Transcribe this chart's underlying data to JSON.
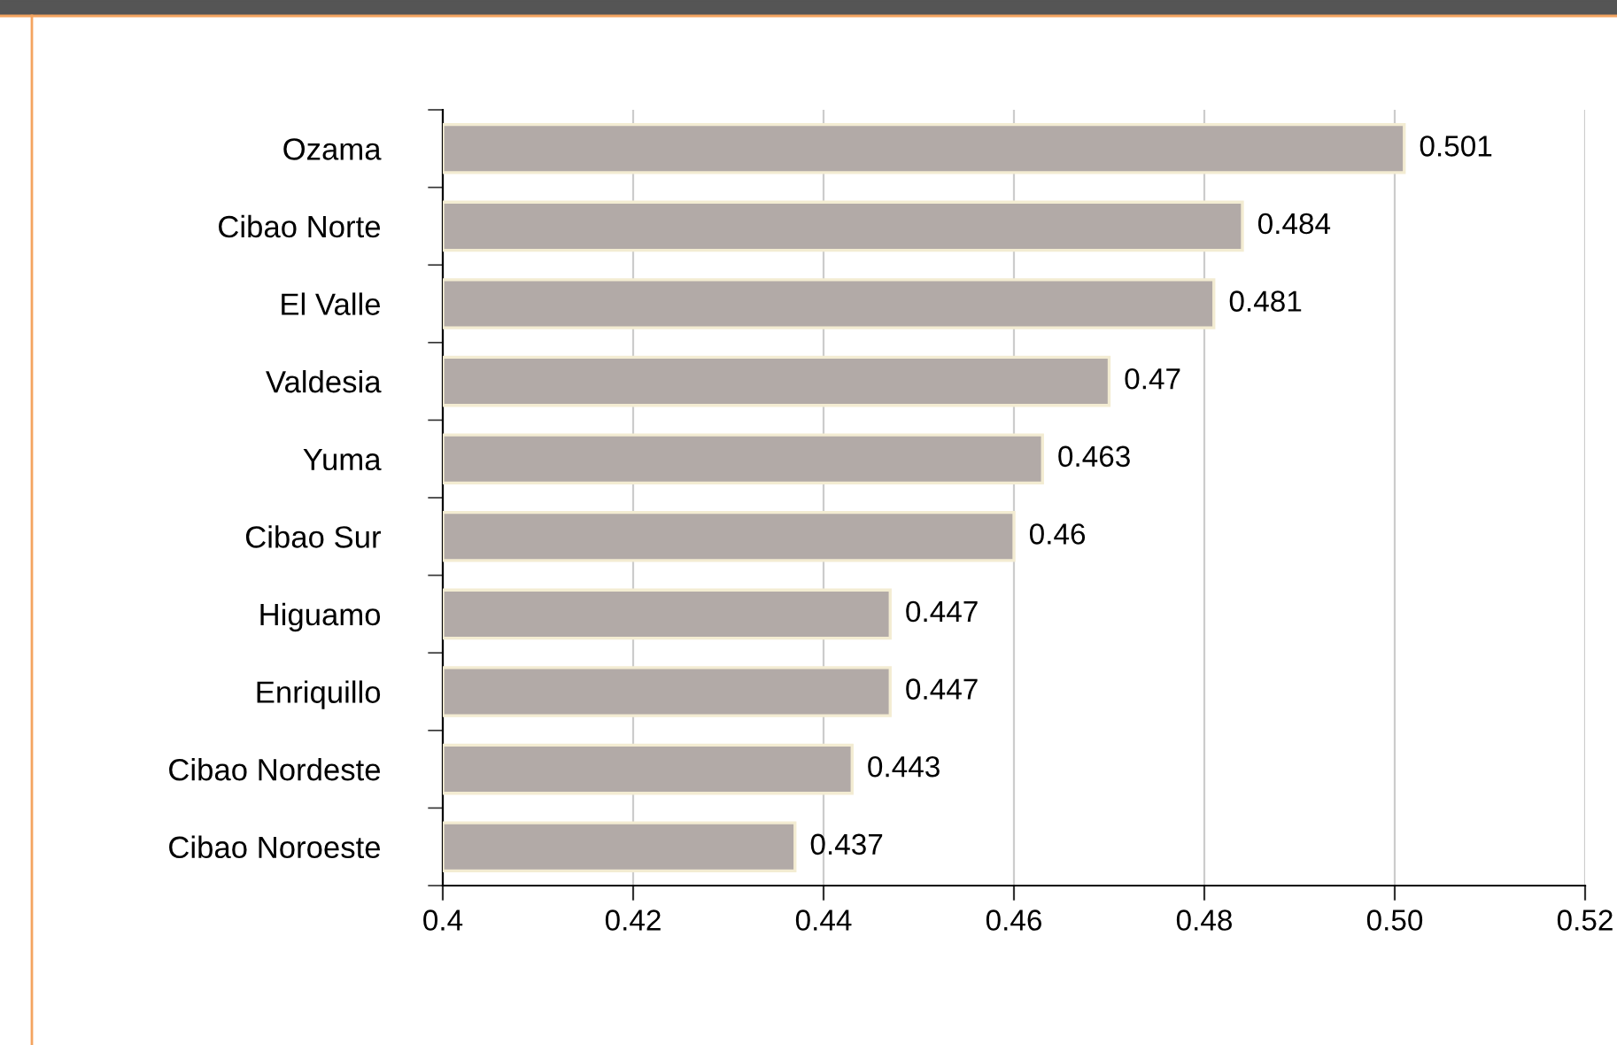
{
  "chart_data": {
    "type": "bar",
    "orientation": "horizontal",
    "categories": [
      "Ozama",
      "Cibao Norte",
      "El Valle",
      "Valdesia",
      "Yuma",
      "Cibao Sur",
      "Higuamo",
      "Enriquillo",
      "Cibao Nordeste",
      "Cibao Noroeste"
    ],
    "values": [
      0.501,
      0.484,
      0.481,
      0.47,
      0.463,
      0.46,
      0.447,
      0.447,
      0.443,
      0.437
    ],
    "color": "#b2aaa7",
    "xlim": [
      0.4,
      0.52
    ],
    "xticks": [
      0.4,
      0.42,
      0.44,
      0.46,
      0.48,
      {
        "value": 0.5,
        "label": "0.50"
      },
      0.52
    ],
    "grid": "x",
    "data_labels": true,
    "legend": false
  }
}
